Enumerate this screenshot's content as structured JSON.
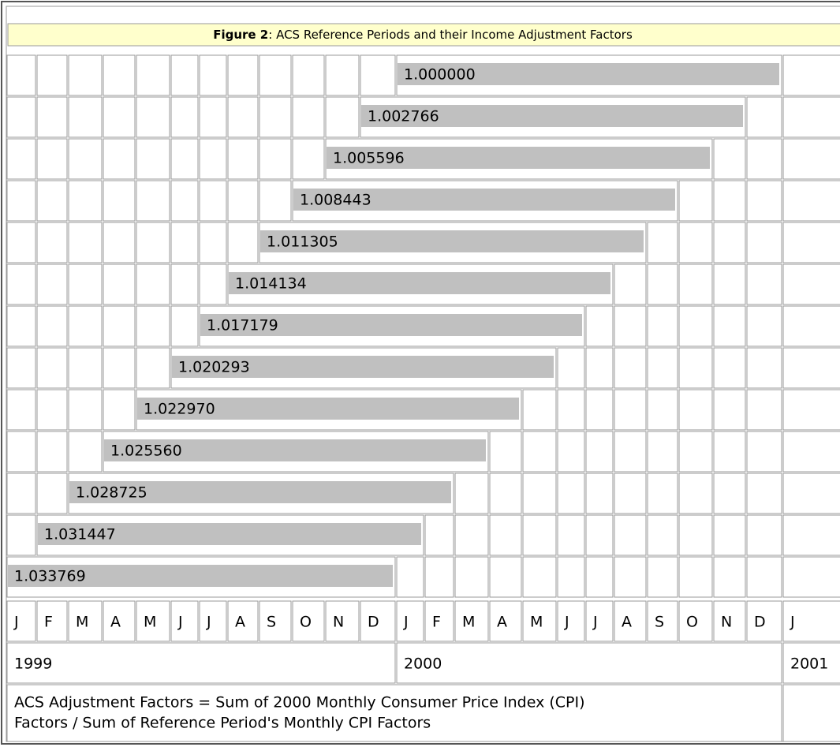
{
  "figure": {
    "title_label": "Figure 2",
    "title_text": ": ACS Reference Periods and their Income Adjustment Factors",
    "factors": [
      "1.000000",
      "1.002766",
      "1.005596",
      "1.008443",
      "1.011305",
      "1.014134",
      "1.017179",
      "1.020293",
      "1.022970",
      "1.025560",
      "1.028725",
      "1.031447",
      "1.033769"
    ],
    "months": [
      "J",
      "F",
      "M",
      "A",
      "M",
      "J",
      "J",
      "A",
      "S",
      "O",
      "N",
      "D",
      "J",
      "F",
      "M",
      "A",
      "M",
      "J",
      "J",
      "A",
      "S",
      "O",
      "N",
      "D",
      "J"
    ],
    "years": [
      "1999",
      "2000",
      "2001"
    ],
    "footnote": [
      "ACS Adjustment Factors = Sum of 2000 Monthly Consumer Price Index (CPI)",
      "Factors / Sum of Reference Period's Monthly CPI Factors"
    ]
  }
}
